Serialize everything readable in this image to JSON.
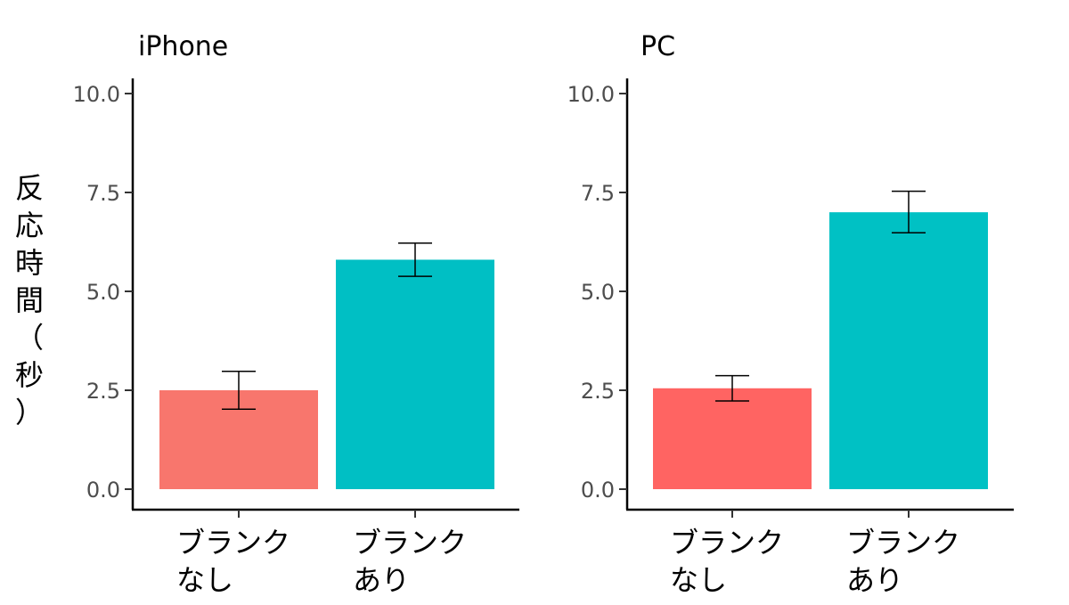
{
  "chart_data": {
    "type": "bar",
    "ylabel": "反応時間（秒）",
    "ylim": [
      0,
      10
    ],
    "y_ticks": [
      "0.0",
      "2.5",
      "5.0",
      "7.5",
      "10.0"
    ],
    "y_tick_values": [
      0,
      2.5,
      5.0,
      7.5,
      10.0
    ],
    "panels": [
      {
        "title": "iPhone",
        "categories": [
          [
            "ブランク",
            "なし"
          ],
          [
            "ブランク",
            "あり"
          ]
        ],
        "values": [
          2.5,
          5.8
        ],
        "error_low": [
          2.02,
          5.38
        ],
        "error_high": [
          2.98,
          6.22
        ],
        "colors": [
          "#F8766D",
          "#00BFC4"
        ]
      },
      {
        "title": "PC",
        "categories": [
          [
            "ブランク",
            "なし"
          ],
          [
            "ブランク",
            "あり"
          ]
        ],
        "values": [
          2.55,
          7.0
        ],
        "error_low": [
          2.23,
          6.48
        ],
        "error_high": [
          2.87,
          7.53
        ],
        "colors": [
          "#FF6462",
          "#00C1C4"
        ]
      }
    ]
  }
}
